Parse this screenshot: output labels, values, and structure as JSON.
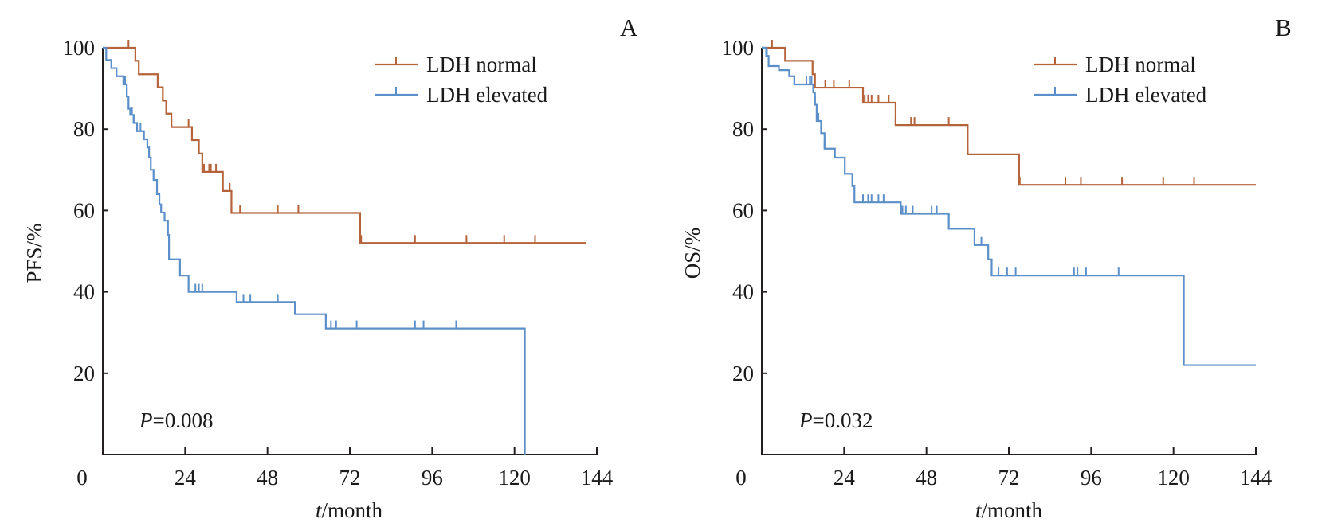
{
  "chart_data": [
    {
      "type": "line",
      "subtype": "kaplan-meier",
      "panel": "A",
      "ylabel": "PFS/%",
      "xlabel_italic": "t",
      "xlabel_rest": "/month",
      "xlim": [
        0,
        144
      ],
      "ylim": [
        0,
        100
      ],
      "xticks": [
        0,
        24,
        48,
        72,
        96,
        120,
        144
      ],
      "yticks": [
        20,
        40,
        60,
        80,
        100
      ],
      "xtick_labels": [
        "0",
        "24",
        "48",
        "72",
        "96",
        "120",
        "144"
      ],
      "ytick_labels": [
        "20",
        "40",
        "60",
        "80",
        "100"
      ],
      "grid": false,
      "legend_position": "top-right",
      "p_value_italic": "P",
      "p_value_rest": "=0.008",
      "series": [
        {
          "name": "LDH normal",
          "color": "#b5633a",
          "steps": [
            [
              0,
              100
            ],
            [
              9.5,
              96.8
            ],
            [
              10.5,
              93.5
            ],
            [
              16,
              90.3
            ],
            [
              17.5,
              87
            ],
            [
              18.5,
              83.8
            ],
            [
              20,
              80.5
            ],
            [
              26,
              77.3
            ],
            [
              28,
              74
            ],
            [
              29,
              69.5
            ],
            [
              35,
              64.8
            ],
            [
              37.5,
              59.4
            ],
            [
              75,
              52
            ]
          ],
          "end_x": 141,
          "censored": [
            7.5,
            20,
            25,
            29.5,
            31,
            31.5,
            33,
            37,
            40,
            51,
            57,
            75.3,
            91,
            106,
            117,
            126
          ]
        },
        {
          "name": "LDH elevated",
          "color": "#5b8fc9",
          "steps": [
            [
              0,
              100
            ],
            [
              1,
              97
            ],
            [
              2.5,
              95
            ],
            [
              4,
              93
            ],
            [
              6,
              91
            ],
            [
              7,
              88
            ],
            [
              7.5,
              85
            ],
            [
              8,
              83.5
            ],
            [
              9,
              81.5
            ],
            [
              10,
              79.5
            ],
            [
              12,
              77.5
            ],
            [
              13,
              75.5
            ],
            [
              13.5,
              73
            ],
            [
              14,
              70
            ],
            [
              14.8,
              67.5
            ],
            [
              15.8,
              64
            ],
            [
              16.5,
              61.5
            ],
            [
              17,
              59.5
            ],
            [
              18,
              57.5
            ],
            [
              19,
              54
            ],
            [
              19.3,
              48
            ],
            [
              22.5,
              44
            ],
            [
              25,
              40
            ],
            [
              39,
              37.5
            ],
            [
              56,
              34.5
            ],
            [
              65,
              31
            ],
            [
              123,
              0
            ]
          ],
          "end_x": 123,
          "censored": [
            6.5,
            7,
            8.5,
            9,
            11,
            27,
            28,
            29,
            41,
            43,
            51,
            56,
            66.5,
            68,
            74,
            91,
            93.5,
            103
          ]
        }
      ]
    },
    {
      "type": "line",
      "subtype": "kaplan-meier",
      "panel": "B",
      "ylabel": "OS/%",
      "xlabel_italic": "t",
      "xlabel_rest": "/month",
      "xlim": [
        0,
        144
      ],
      "ylim": [
        0,
        100
      ],
      "xticks": [
        0,
        24,
        48,
        72,
        96,
        120,
        144
      ],
      "yticks": [
        20,
        40,
        60,
        80,
        100
      ],
      "xtick_labels": [
        "0",
        "24",
        "48",
        "72",
        "96",
        "120",
        "144"
      ],
      "ytick_labels": [
        "20",
        "40",
        "60",
        "80",
        "100"
      ],
      "grid": false,
      "legend_position": "top-right",
      "p_value_italic": "P",
      "p_value_rest": "=0.032",
      "series": [
        {
          "name": "LDH normal",
          "color": "#b5633a",
          "steps": [
            [
              0,
              100
            ],
            [
              6.8,
              96.8
            ],
            [
              14.8,
              93.5
            ],
            [
              15.5,
              90.2
            ],
            [
              29.5,
              86.5
            ],
            [
              39,
              81
            ],
            [
              60,
              73.8
            ],
            [
              75,
              66.3
            ]
          ],
          "end_x": 144,
          "censored": [
            3,
            18.5,
            21,
            25.5,
            30,
            31,
            32,
            34,
            37,
            39,
            43.5,
            44.5,
            54.5,
            60,
            75.2,
            88.5,
            93,
            105,
            117,
            126
          ]
        },
        {
          "name": "LDH elevated",
          "color": "#5b8fc9",
          "steps": [
            [
              0,
              100
            ],
            [
              1.3,
              98
            ],
            [
              2,
              95.5
            ],
            [
              5,
              94.5
            ],
            [
              8,
              93
            ],
            [
              9.5,
              91
            ],
            [
              15,
              89
            ],
            [
              15.5,
              86
            ],
            [
              16,
              82
            ],
            [
              17.3,
              79
            ],
            [
              18.3,
              75.2
            ],
            [
              21.3,
              73
            ],
            [
              24.2,
              69
            ],
            [
              26.4,
              66
            ],
            [
              27,
              62
            ],
            [
              40.5,
              59.2
            ],
            [
              54.5,
              55.5
            ],
            [
              62,
              51.5
            ],
            [
              66,
              48
            ],
            [
              67,
              44
            ],
            [
              123,
              22
            ]
          ],
          "end_x": 144,
          "censored": [
            1.5,
            9.5,
            13,
            14,
            14.5,
            15,
            15.5,
            16.5,
            18.3,
            29.5,
            31,
            32,
            34,
            35.5,
            41,
            42,
            44,
            49.5,
            51,
            64,
            69,
            71.5,
            74,
            91,
            92,
            94.5,
            104
          ]
        }
      ]
    }
  ],
  "legend": {
    "normal": "LDH normal",
    "elevated": "LDH elevated"
  }
}
